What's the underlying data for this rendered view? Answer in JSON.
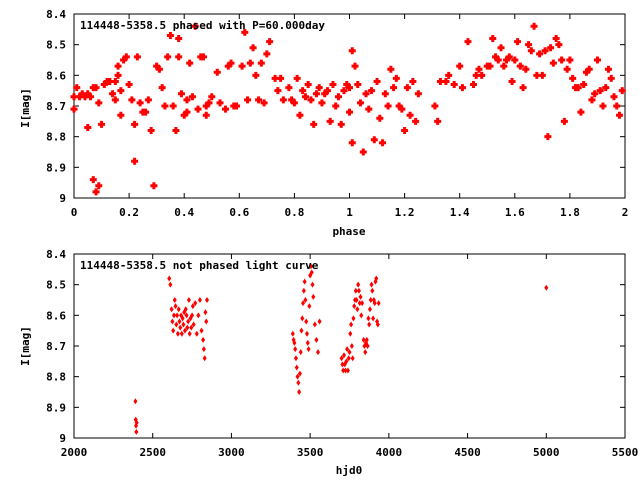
{
  "chart_data": [
    {
      "type": "scatter",
      "title": "114448-5358.5 phased with P=60.000day",
      "xlabel": "phase",
      "ylabel": "I[mag]",
      "xlim": [
        0,
        2
      ],
      "ylim": [
        9,
        8.4
      ],
      "y_inverted": true,
      "grid": false,
      "marker_color": "#ff0000",
      "xticks": [
        "0",
        "0.2",
        "0.4",
        "0.6",
        "0.8",
        "1",
        "1.2",
        "1.4",
        "1.6",
        "1.8",
        "2"
      ],
      "xtick_values": [
        0,
        0.2,
        0.4,
        0.6,
        0.8,
        1,
        1.2,
        1.4,
        1.6,
        1.8,
        2
      ],
      "yticks": [
        "8.4",
        "8.5",
        "8.6",
        "8.7",
        "8.8",
        "8.9",
        "9"
      ],
      "ytick_values": [
        8.4,
        8.5,
        8.6,
        8.7,
        8.8,
        8.9,
        9
      ],
      "points": [
        [
          0.0,
          8.67
        ],
        [
          0.0,
          8.71
        ],
        [
          0.01,
          8.64
        ],
        [
          0.02,
          8.67
        ],
        [
          0.03,
          8.66
        ],
        [
          0.04,
          8.67
        ],
        [
          0.05,
          8.66
        ],
        [
          0.05,
          8.77
        ],
        [
          0.06,
          8.67
        ],
        [
          0.07,
          8.64
        ],
        [
          0.07,
          8.94
        ],
        [
          0.08,
          8.64
        ],
        [
          0.08,
          8.98
        ],
        [
          0.09,
          8.69
        ],
        [
          0.09,
          8.96
        ],
        [
          0.1,
          8.76
        ],
        [
          0.11,
          8.63
        ],
        [
          0.12,
          8.62
        ],
        [
          0.13,
          8.62
        ],
        [
          0.14,
          8.66
        ],
        [
          0.15,
          8.62
        ],
        [
          0.15,
          8.68
        ],
        [
          0.16,
          8.6
        ],
        [
          0.16,
          8.57
        ],
        [
          0.17,
          8.65
        ],
        [
          0.17,
          8.73
        ],
        [
          0.18,
          8.55
        ],
        [
          0.19,
          8.54
        ],
        [
          0.2,
          8.63
        ],
        [
          0.21,
          8.68
        ],
        [
          0.22,
          8.88
        ],
        [
          0.22,
          8.76
        ],
        [
          0.23,
          8.54
        ],
        [
          0.24,
          8.69
        ],
        [
          0.25,
          8.72
        ],
        [
          0.26,
          8.72
        ],
        [
          0.27,
          8.68
        ],
        [
          0.28,
          8.78
        ],
        [
          0.29,
          8.96
        ],
        [
          0.3,
          8.57
        ],
        [
          0.31,
          8.58
        ],
        [
          0.32,
          8.64
        ],
        [
          0.33,
          8.7
        ],
        [
          0.34,
          8.54
        ],
        [
          0.35,
          8.47
        ],
        [
          0.36,
          8.7
        ],
        [
          0.37,
          8.78
        ],
        [
          0.38,
          8.48
        ],
        [
          0.38,
          8.54
        ],
        [
          0.39,
          8.66
        ],
        [
          0.4,
          8.73
        ],
        [
          0.41,
          8.72
        ],
        [
          0.41,
          8.68
        ],
        [
          0.42,
          8.56
        ],
        [
          0.43,
          8.67
        ],
        [
          0.44,
          8.44
        ],
        [
          0.45,
          8.71
        ],
        [
          0.46,
          8.54
        ],
        [
          0.47,
          8.54
        ],
        [
          0.48,
          8.7
        ],
        [
          0.48,
          8.73
        ],
        [
          0.49,
          8.69
        ],
        [
          0.5,
          8.67
        ],
        [
          0.52,
          8.59
        ],
        [
          0.53,
          8.69
        ],
        [
          0.55,
          8.71
        ],
        [
          0.56,
          8.57
        ],
        [
          0.57,
          8.56
        ],
        [
          0.58,
          8.7
        ],
        [
          0.59,
          8.7
        ],
        [
          0.61,
          8.57
        ],
        [
          0.62,
          8.46
        ],
        [
          0.63,
          8.68
        ],
        [
          0.64,
          8.56
        ],
        [
          0.65,
          8.51
        ],
        [
          0.66,
          8.6
        ],
        [
          0.67,
          8.68
        ],
        [
          0.68,
          8.56
        ],
        [
          0.69,
          8.69
        ],
        [
          0.7,
          8.53
        ],
        [
          0.71,
          8.49
        ],
        [
          0.73,
          8.61
        ],
        [
          0.74,
          8.65
        ],
        [
          0.75,
          8.61
        ],
        [
          0.76,
          8.68
        ],
        [
          0.78,
          8.64
        ],
        [
          0.79,
          8.68
        ],
        [
          0.8,
          8.69
        ],
        [
          0.81,
          8.61
        ],
        [
          0.82,
          8.73
        ],
        [
          0.83,
          8.65
        ],
        [
          0.84,
          8.67
        ],
        [
          0.85,
          8.63
        ],
        [
          0.86,
          8.68
        ],
        [
          0.87,
          8.76
        ],
        [
          0.88,
          8.66
        ],
        [
          0.89,
          8.64
        ],
        [
          0.9,
          8.69
        ],
        [
          0.91,
          8.66
        ],
        [
          0.92,
          8.65
        ],
        [
          0.93,
          8.75
        ],
        [
          0.94,
          8.63
        ],
        [
          0.95,
          8.7
        ],
        [
          0.96,
          8.67
        ],
        [
          0.97,
          8.76
        ],
        [
          0.98,
          8.65
        ],
        [
          0.99,
          8.63
        ],
        [
          1.0,
          8.64
        ],
        [
          1.0,
          8.72
        ],
        [
          1.01,
          8.52
        ],
        [
          1.01,
          8.82
        ],
        [
          1.02,
          8.57
        ],
        [
          1.03,
          8.63
        ],
        [
          1.04,
          8.69
        ],
        [
          1.05,
          8.85
        ],
        [
          1.06,
          8.66
        ],
        [
          1.07,
          8.71
        ],
        [
          1.08,
          8.65
        ],
        [
          1.09,
          8.81
        ],
        [
          1.1,
          8.62
        ],
        [
          1.11,
          8.74
        ],
        [
          1.12,
          8.82
        ],
        [
          1.13,
          8.66
        ],
        [
          1.14,
          8.7
        ],
        [
          1.15,
          8.58
        ],
        [
          1.16,
          8.64
        ],
        [
          1.17,
          8.61
        ],
        [
          1.18,
          8.7
        ],
        [
          1.19,
          8.71
        ],
        [
          1.2,
          8.78
        ],
        [
          1.21,
          8.64
        ],
        [
          1.22,
          8.73
        ],
        [
          1.23,
          8.62
        ],
        [
          1.24,
          8.75
        ],
        [
          1.25,
          8.66
        ],
        [
          1.31,
          8.7
        ],
        [
          1.32,
          8.75
        ],
        [
          1.33,
          8.62
        ],
        [
          1.35,
          8.62
        ],
        [
          1.36,
          8.6
        ],
        [
          1.38,
          8.63
        ],
        [
          1.4,
          8.57
        ],
        [
          1.41,
          8.64
        ],
        [
          1.43,
          8.49
        ],
        [
          1.45,
          8.63
        ],
        [
          1.46,
          8.6
        ],
        [
          1.47,
          8.58
        ],
        [
          1.48,
          8.6
        ],
        [
          1.5,
          8.57
        ],
        [
          1.51,
          8.57
        ],
        [
          1.52,
          8.48
        ],
        [
          1.53,
          8.54
        ],
        [
          1.54,
          8.55
        ],
        [
          1.55,
          8.51
        ],
        [
          1.56,
          8.57
        ],
        [
          1.57,
          8.55
        ],
        [
          1.58,
          8.54
        ],
        [
          1.59,
          8.62
        ],
        [
          1.6,
          8.55
        ],
        [
          1.61,
          8.49
        ],
        [
          1.62,
          8.57
        ],
        [
          1.63,
          8.64
        ],
        [
          1.64,
          8.58
        ],
        [
          1.65,
          8.5
        ],
        [
          1.66,
          8.52
        ],
        [
          1.67,
          8.44
        ],
        [
          1.68,
          8.6
        ],
        [
          1.69,
          8.53
        ],
        [
          1.7,
          8.6
        ],
        [
          1.71,
          8.52
        ],
        [
          1.72,
          8.8
        ],
        [
          1.73,
          8.51
        ],
        [
          1.74,
          8.56
        ],
        [
          1.75,
          8.48
        ],
        [
          1.76,
          8.5
        ],
        [
          1.77,
          8.55
        ],
        [
          1.78,
          8.75
        ],
        [
          1.79,
          8.58
        ],
        [
          1.8,
          8.55
        ],
        [
          1.81,
          8.61
        ],
        [
          1.82,
          8.64
        ],
        [
          1.83,
          8.64
        ],
        [
          1.84,
          8.72
        ],
        [
          1.85,
          8.63
        ],
        [
          1.86,
          8.59
        ],
        [
          1.87,
          8.58
        ],
        [
          1.88,
          8.68
        ],
        [
          1.89,
          8.66
        ],
        [
          1.9,
          8.55
        ],
        [
          1.91,
          8.65
        ],
        [
          1.92,
          8.7
        ],
        [
          1.93,
          8.64
        ],
        [
          1.94,
          8.58
        ],
        [
          1.95,
          8.61
        ],
        [
          1.96,
          8.67
        ],
        [
          1.97,
          8.7
        ],
        [
          1.98,
          8.73
        ],
        [
          1.99,
          8.65
        ]
      ]
    },
    {
      "type": "scatter",
      "title": "114448-5358.5 not phased light curve",
      "xlabel": "hjd0",
      "ylabel": "I[mag]",
      "xlim": [
        2000,
        5500
      ],
      "ylim": [
        9,
        8.4
      ],
      "y_inverted": true,
      "grid": false,
      "marker_color": "#ff0000",
      "xticks": [
        "2000",
        "2500",
        "3000",
        "3500",
        "4000",
        "4500",
        "5000",
        "5500"
      ],
      "xtick_values": [
        2000,
        2500,
        3000,
        3500,
        4000,
        4500,
        5000,
        5500
      ],
      "yticks": [
        "8.4",
        "8.5",
        "8.6",
        "8.7",
        "8.8",
        "8.9",
        "9"
      ],
      "ytick_values": [
        8.4,
        8.5,
        8.6,
        8.7,
        8.8,
        8.9,
        9
      ],
      "points": [
        [
          2390,
          8.88
        ],
        [
          2392,
          8.94
        ],
        [
          2394,
          8.96
        ],
        [
          2396,
          8.98
        ],
        [
          2398,
          8.95
        ],
        [
          2605,
          8.48
        ],
        [
          2612,
          8.5
        ],
        [
          2620,
          8.58
        ],
        [
          2625,
          8.62
        ],
        [
          2630,
          8.65
        ],
        [
          2635,
          8.6
        ],
        [
          2640,
          8.55
        ],
        [
          2645,
          8.57
        ],
        [
          2650,
          8.63
        ],
        [
          2655,
          8.6
        ],
        [
          2660,
          8.66
        ],
        [
          2665,
          8.58
        ],
        [
          2670,
          8.62
        ],
        [
          2675,
          8.64
        ],
        [
          2680,
          8.6
        ],
        [
          2685,
          8.66
        ],
        [
          2690,
          8.61
        ],
        [
          2695,
          8.63
        ],
        [
          2700,
          8.59
        ],
        [
          2705,
          8.65
        ],
        [
          2710,
          8.58
        ],
        [
          2715,
          8.6
        ],
        [
          2720,
          8.64
        ],
        [
          2725,
          8.62
        ],
        [
          2730,
          8.55
        ],
        [
          2735,
          8.66
        ],
        [
          2740,
          8.61
        ],
        [
          2745,
          8.64
        ],
        [
          2750,
          8.6
        ],
        [
          2755,
          8.57
        ],
        [
          2760,
          8.63
        ],
        [
          2770,
          8.56
        ],
        [
          2780,
          8.66
        ],
        [
          2790,
          8.6
        ],
        [
          2800,
          8.55
        ],
        [
          2810,
          8.65
        ],
        [
          2820,
          8.68
        ],
        [
          2825,
          8.71
        ],
        [
          2830,
          8.74
        ],
        [
          2835,
          8.59
        ],
        [
          2840,
          8.62
        ],
        [
          2845,
          8.55
        ],
        [
          3390,
          8.66
        ],
        [
          3395,
          8.68
        ],
        [
          3400,
          8.69
        ],
        [
          3405,
          8.71
        ],
        [
          3410,
          8.74
        ],
        [
          3415,
          8.77
        ],
        [
          3420,
          8.8
        ],
        [
          3425,
          8.82
        ],
        [
          3430,
          8.85
        ],
        [
          3435,
          8.79
        ],
        [
          3440,
          8.72
        ],
        [
          3445,
          8.65
        ],
        [
          3450,
          8.61
        ],
        [
          3455,
          8.56
        ],
        [
          3460,
          8.52
        ],
        [
          3465,
          8.49
        ],
        [
          3470,
          8.55
        ],
        [
          3475,
          8.62
        ],
        [
          3480,
          8.66
        ],
        [
          3485,
          8.69
        ],
        [
          3490,
          8.71
        ],
        [
          3495,
          8.57
        ],
        [
          3500,
          8.47
        ],
        [
          3505,
          8.44
        ],
        [
          3510,
          8.46
        ],
        [
          3515,
          8.5
        ],
        [
          3520,
          8.54
        ],
        [
          3530,
          8.63
        ],
        [
          3540,
          8.68
        ],
        [
          3550,
          8.72
        ],
        [
          3560,
          8.62
        ],
        [
          3700,
          8.74
        ],
        [
          3705,
          8.76
        ],
        [
          3710,
          8.78
        ],
        [
          3715,
          8.73
        ],
        [
          3720,
          8.76
        ],
        [
          3725,
          8.78
        ],
        [
          3730,
          8.75
        ],
        [
          3735,
          8.71
        ],
        [
          3740,
          8.78
        ],
        [
          3745,
          8.74
        ],
        [
          3750,
          8.72
        ],
        [
          3755,
          8.66
        ],
        [
          3760,
          8.63
        ],
        [
          3765,
          8.7
        ],
        [
          3770,
          8.74
        ],
        [
          3775,
          8.61
        ],
        [
          3780,
          8.57
        ],
        [
          3785,
          8.55
        ],
        [
          3790,
          8.52
        ],
        [
          3795,
          8.55
        ],
        [
          3800,
          8.58
        ],
        [
          3805,
          8.5
        ],
        [
          3810,
          8.52
        ],
        [
          3815,
          8.56
        ],
        [
          3820,
          8.54
        ],
        [
          3825,
          8.6
        ],
        [
          3830,
          8.56
        ],
        [
          3840,
          8.68
        ],
        [
          3845,
          8.7
        ],
        [
          3850,
          8.72
        ],
        [
          3855,
          8.69
        ],
        [
          3860,
          8.68
        ],
        [
          3865,
          8.7
        ],
        [
          3870,
          8.61
        ],
        [
          3875,
          8.63
        ],
        [
          3880,
          8.58
        ],
        [
          3885,
          8.55
        ],
        [
          3890,
          8.5
        ],
        [
          3895,
          8.52
        ],
        [
          3900,
          8.61
        ],
        [
          3905,
          8.55
        ],
        [
          3910,
          8.56
        ],
        [
          3915,
          8.49
        ],
        [
          3920,
          8.48
        ],
        [
          3925,
          8.62
        ],
        [
          3930,
          8.63
        ],
        [
          3935,
          8.56
        ],
        [
          5000,
          8.51
        ]
      ]
    }
  ]
}
